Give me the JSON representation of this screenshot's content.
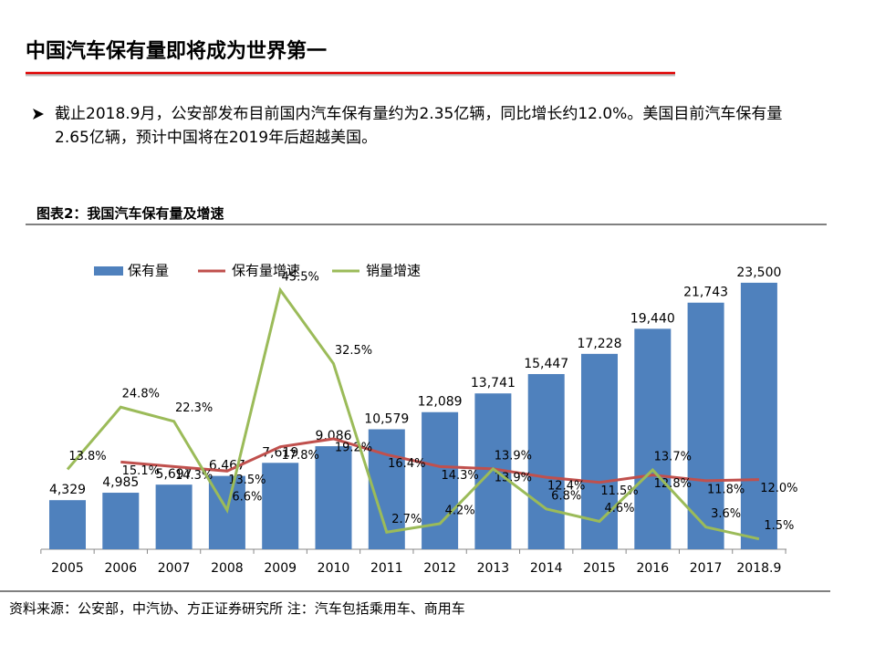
{
  "header": {
    "title": "中国汽车保有量即将成为世界第一",
    "bullet": "截止2018.9月，公安部发布目前国内汽车保有量约为2.35亿辆，同比增长约12.0%。美国目前汽车保有量2.65亿辆，预计中国将在2019年后超越美国。"
  },
  "figure_title": "图表2：我国汽车保有量及增速",
  "source": "资料来源：公安部，中汽协、方正证券研究所   注：汽车包括乘用车、商用车",
  "chart_data": {
    "type": "bar",
    "categories": [
      "2005",
      "2006",
      "2007",
      "2008",
      "2009",
      "2010",
      "2011",
      "2012",
      "2013",
      "2014",
      "2015",
      "2016",
      "2017",
      "2018.9"
    ],
    "legend": "top-left",
    "series": [
      {
        "name": "保有量",
        "type": "bar",
        "color": "#4f81bd",
        "values": [
          4329,
          4985,
          5697,
          6467,
          7619,
          9086,
          10579,
          12089,
          13741,
          15447,
          17228,
          19440,
          21743,
          23500
        ],
        "value_labels": [
          "4,329",
          "4,985",
          "5,697",
          "6,467",
          "7,619",
          "9,086",
          "10,579",
          "12,089",
          "13,741",
          "15,447",
          "17,228",
          "19,440",
          "21,743",
          "23,500"
        ]
      },
      {
        "name": "保有量增速",
        "type": "line",
        "axis": "y2",
        "color": "#c0504d",
        "values": [
          null,
          15.1,
          14.3,
          13.5,
          17.8,
          19.2,
          16.4,
          14.3,
          13.9,
          12.4,
          11.5,
          12.8,
          11.8,
          12.0
        ],
        "value_labels": [
          null,
          "15.1%",
          "14.3%",
          "13.5%",
          "17.8%",
          "19.2%",
          "16.4%",
          "14.3%",
          "13.9%",
          "12.4%",
          "11.5%",
          "12.8%",
          "11.8%",
          "12.0%"
        ]
      },
      {
        "name": "销量增速",
        "type": "line",
        "axis": "y2",
        "color": "#9bbb59",
        "values": [
          13.8,
          24.8,
          22.3,
          6.6,
          45.5,
          32.5,
          2.7,
          4.2,
          13.9,
          6.8,
          4.6,
          13.7,
          3.6,
          1.5
        ],
        "value_labels": [
          "13.8%",
          "24.8%",
          "22.3%",
          "6.6%",
          "45.5%",
          "32.5%",
          "2.7%",
          "4.2%",
          "13.9%",
          "6.8%",
          "4.6%",
          "13.7%",
          "3.6%",
          "1.5%"
        ]
      }
    ]
  }
}
